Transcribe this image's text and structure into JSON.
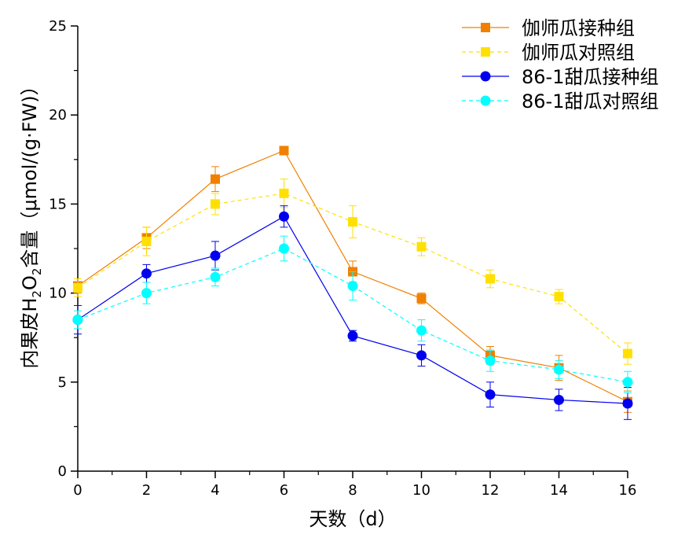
{
  "chart_data": {
    "type": "line",
    "title": "",
    "xlabel": "天数（d）",
    "ylabel": {
      "prefix": "内果皮H",
      "sub1": "2",
      "mid": "O",
      "sub2": "2",
      "suffix": "含量（μmol/(g·FW)）"
    },
    "x": [
      0,
      2,
      4,
      6,
      8,
      10,
      12,
      14,
      16
    ],
    "xlim": [
      0,
      16
    ],
    "ylim": [
      0,
      25
    ],
    "x_ticks": [
      "0",
      "2",
      "4",
      "6",
      "8",
      "10",
      "12",
      "14",
      "16"
    ],
    "y_ticks": [
      "0",
      "5",
      "10",
      "15",
      "20",
      "25"
    ],
    "grid": false,
    "legend_position": "top-right",
    "series": [
      {
        "name": "伽师瓜接种组",
        "color": "#f08000",
        "marker": "square",
        "dash": "solid",
        "values": [
          10.4,
          13.1,
          16.4,
          18.0,
          11.2,
          9.7,
          6.5,
          5.8,
          3.9
        ],
        "errors": [
          0.4,
          0.6,
          0.7,
          0.0,
          0.6,
          0.3,
          0.5,
          0.7,
          0.6
        ]
      },
      {
        "name": "伽师瓜对照组",
        "color": "#ffe000",
        "marker": "square",
        "dash": "dashed",
        "values": [
          10.3,
          12.9,
          15.0,
          15.6,
          14.0,
          12.6,
          10.8,
          9.8,
          6.6
        ],
        "errors": [
          0.5,
          0.8,
          0.6,
          0.8,
          0.9,
          0.5,
          0.5,
          0.4,
          0.6
        ]
      },
      {
        "name": "86-1甜瓜接种组",
        "color": "#0000ee",
        "marker": "circle",
        "dash": "solid",
        "values": [
          8.5,
          11.1,
          12.1,
          14.3,
          7.6,
          6.5,
          4.3,
          4.0,
          3.8
        ],
        "errors": [
          0.8,
          0.5,
          0.8,
          0.6,
          0.3,
          0.6,
          0.7,
          0.6,
          0.9
        ]
      },
      {
        "name": "86-1甜瓜对照组",
        "color": "#00ffff",
        "marker": "circle",
        "dash": "dashed",
        "values": [
          8.5,
          10.0,
          10.9,
          12.5,
          10.4,
          7.9,
          6.2,
          5.7,
          5.0
        ],
        "errors": [
          0.5,
          0.6,
          0.5,
          0.7,
          0.8,
          0.6,
          0.6,
          0.5,
          0.6
        ]
      }
    ]
  }
}
